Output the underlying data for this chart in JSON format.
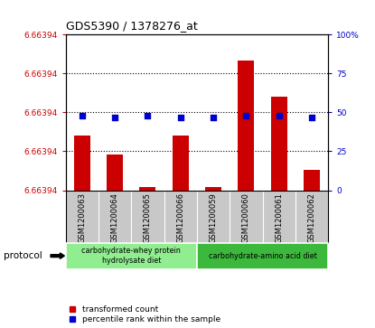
{
  "title": "GDS5390 / 1378276_at",
  "samples": [
    "GSM1200063",
    "GSM1200064",
    "GSM1200065",
    "GSM1200066",
    "GSM1200059",
    "GSM1200060",
    "GSM1200061",
    "GSM1200062"
  ],
  "red_bar_heights": [
    35,
    23,
    2,
    35,
    2,
    83,
    60,
    13
  ],
  "blue_percentiles": [
    48,
    47,
    48,
    47,
    47,
    48,
    48,
    47
  ],
  "ylim": [
    0,
    100
  ],
  "ytick_positions": [
    0,
    25,
    50,
    75,
    100
  ],
  "ytick_labels_left": [
    "6.66394",
    "6.66394",
    "6.66394",
    "6.66394",
    "6.66394"
  ],
  "ytick_labels_right": [
    "0",
    "25",
    "50",
    "75",
    "100%"
  ],
  "groups": [
    {
      "label": "carbohydrate-whey protein\nhydrolysate diet",
      "start": 0,
      "end": 4,
      "color": "#90EE90"
    },
    {
      "label": "carbohydrate-amino acid diet",
      "start": 4,
      "end": 8,
      "color": "#3CB93C"
    }
  ],
  "protocol_label": "protocol",
  "legend_red_label": "transformed count",
  "legend_blue_label": "percentile rank within the sample",
  "red_color": "#CC0000",
  "blue_color": "#0000CC",
  "bar_width": 0.5,
  "sample_area_color": "#C8C8C8",
  "proto_color_1": "#90EE90",
  "proto_color_2": "#3CB93C"
}
